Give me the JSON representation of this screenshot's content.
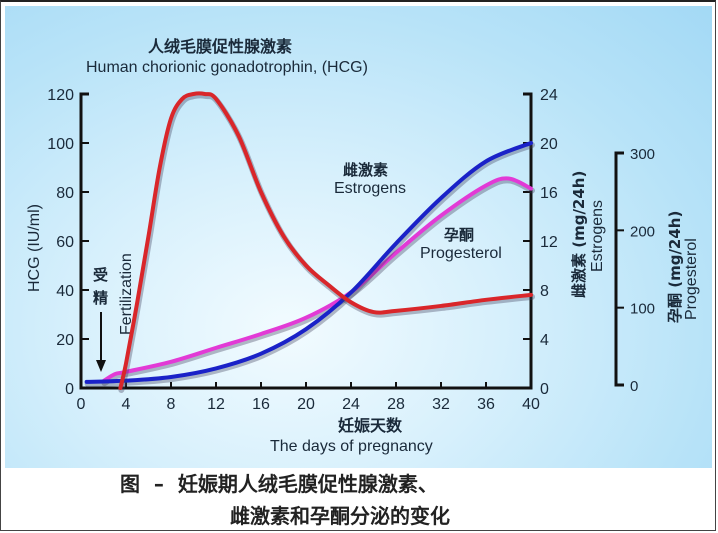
{
  "figure": {
    "title_cn": "人绒毛膜促性腺激素",
    "title_en": "Human chorionic gonadotrophin,  (HCG)",
    "left_axis_label": "HCG (IU/ml)",
    "right_axis_label_cn": "雌激素 (mg/24h)",
    "right_axis_label_en": "Estrogens",
    "far_right_axis_label_cn": "孕酮 (mg/24h)",
    "far_right_axis_label_en": "Progesterol",
    "x_label_cn": "妊娠天数",
    "x_label_en": "The days of pregnancy",
    "fertilization_cn_1": "受",
    "fertilization_cn_2": "精",
    "fertilization_en": "Fertilization",
    "estrogen_label_cn": "雌激素",
    "estrogen_label_en": "Estrogens",
    "progesterol_label_cn": "孕酮",
    "progesterol_label_en": "Progesterol",
    "caption_line1": "图  –  妊娠期人绒毛膜促性腺激素、",
    "caption_line2": "雌激素和孕酮分泌的变化",
    "colors": {
      "hcg": "#d9262a",
      "estrogen": "#1a22c8",
      "progesterol": "#e23ad6",
      "axis": "#111111",
      "background": "#b8e3f8"
    }
  },
  "chart_data": {
    "type": "line",
    "title": "Human chorionic gonadotrophin, (HCG)",
    "xlabel": "The days of pregnancy (妊娠天数)",
    "x_ticks": [
      0,
      4,
      8,
      12,
      16,
      20,
      24,
      28,
      32,
      36,
      40
    ],
    "xlim": [
      0,
      40
    ],
    "axes": [
      {
        "name": "HCG (IU/ml)",
        "position": "left",
        "ylim": [
          0,
          120
        ],
        "ticks": [
          0,
          20,
          40,
          60,
          80,
          100,
          120
        ]
      },
      {
        "name": "雌激素 Estrogens (mg/24h)",
        "position": "right",
        "ylim": [
          0,
          24
        ],
        "ticks": [
          0,
          4,
          8,
          12,
          16,
          20,
          24
        ]
      },
      {
        "name": "孕酮 Progesterol (mg/24h)",
        "position": "far-right",
        "ylim": [
          0,
          300
        ],
        "ticks": [
          0,
          100,
          200,
          300
        ]
      }
    ],
    "series": [
      {
        "name": "HCG",
        "axis": "left",
        "color": "#d9262a",
        "x": [
          3.5,
          4,
          5,
          6,
          7,
          8,
          9,
          10,
          11,
          12,
          14,
          16,
          18,
          20,
          22,
          24,
          26,
          28,
          32,
          36,
          40
        ],
        "values": [
          0,
          10,
          35,
          62,
          90,
          110,
          118,
          120,
          120,
          118,
          103,
          80,
          62,
          50,
          42,
          35,
          31,
          31.5,
          33.5,
          36,
          38
        ]
      },
      {
        "name": "Estrogens",
        "axis": "right",
        "color": "#1a22c8",
        "x": [
          0.5,
          4,
          8,
          12,
          16,
          20,
          24,
          28,
          32,
          36,
          40
        ],
        "values": [
          0.5,
          0.6,
          0.9,
          1.6,
          2.8,
          4.8,
          7.8,
          11.8,
          15.5,
          18.5,
          20
        ]
      },
      {
        "name": "Progesterol",
        "axis": "far-right",
        "color": "#e23ad6",
        "x": [
          2,
          3,
          4,
          8,
          12,
          16,
          20,
          24,
          28,
          32,
          36,
          38,
          40
        ],
        "values": [
          5,
          14,
          17,
          30,
          48,
          66,
          87,
          120,
          171,
          219,
          258,
          267,
          254
        ]
      }
    ],
    "annotations": [
      "受精 Fertilization (arrow at day ~1.8)",
      "雌激素 Estrogens",
      "孕酮 Progesterol"
    ],
    "grid": false,
    "legend": "inline labels"
  }
}
